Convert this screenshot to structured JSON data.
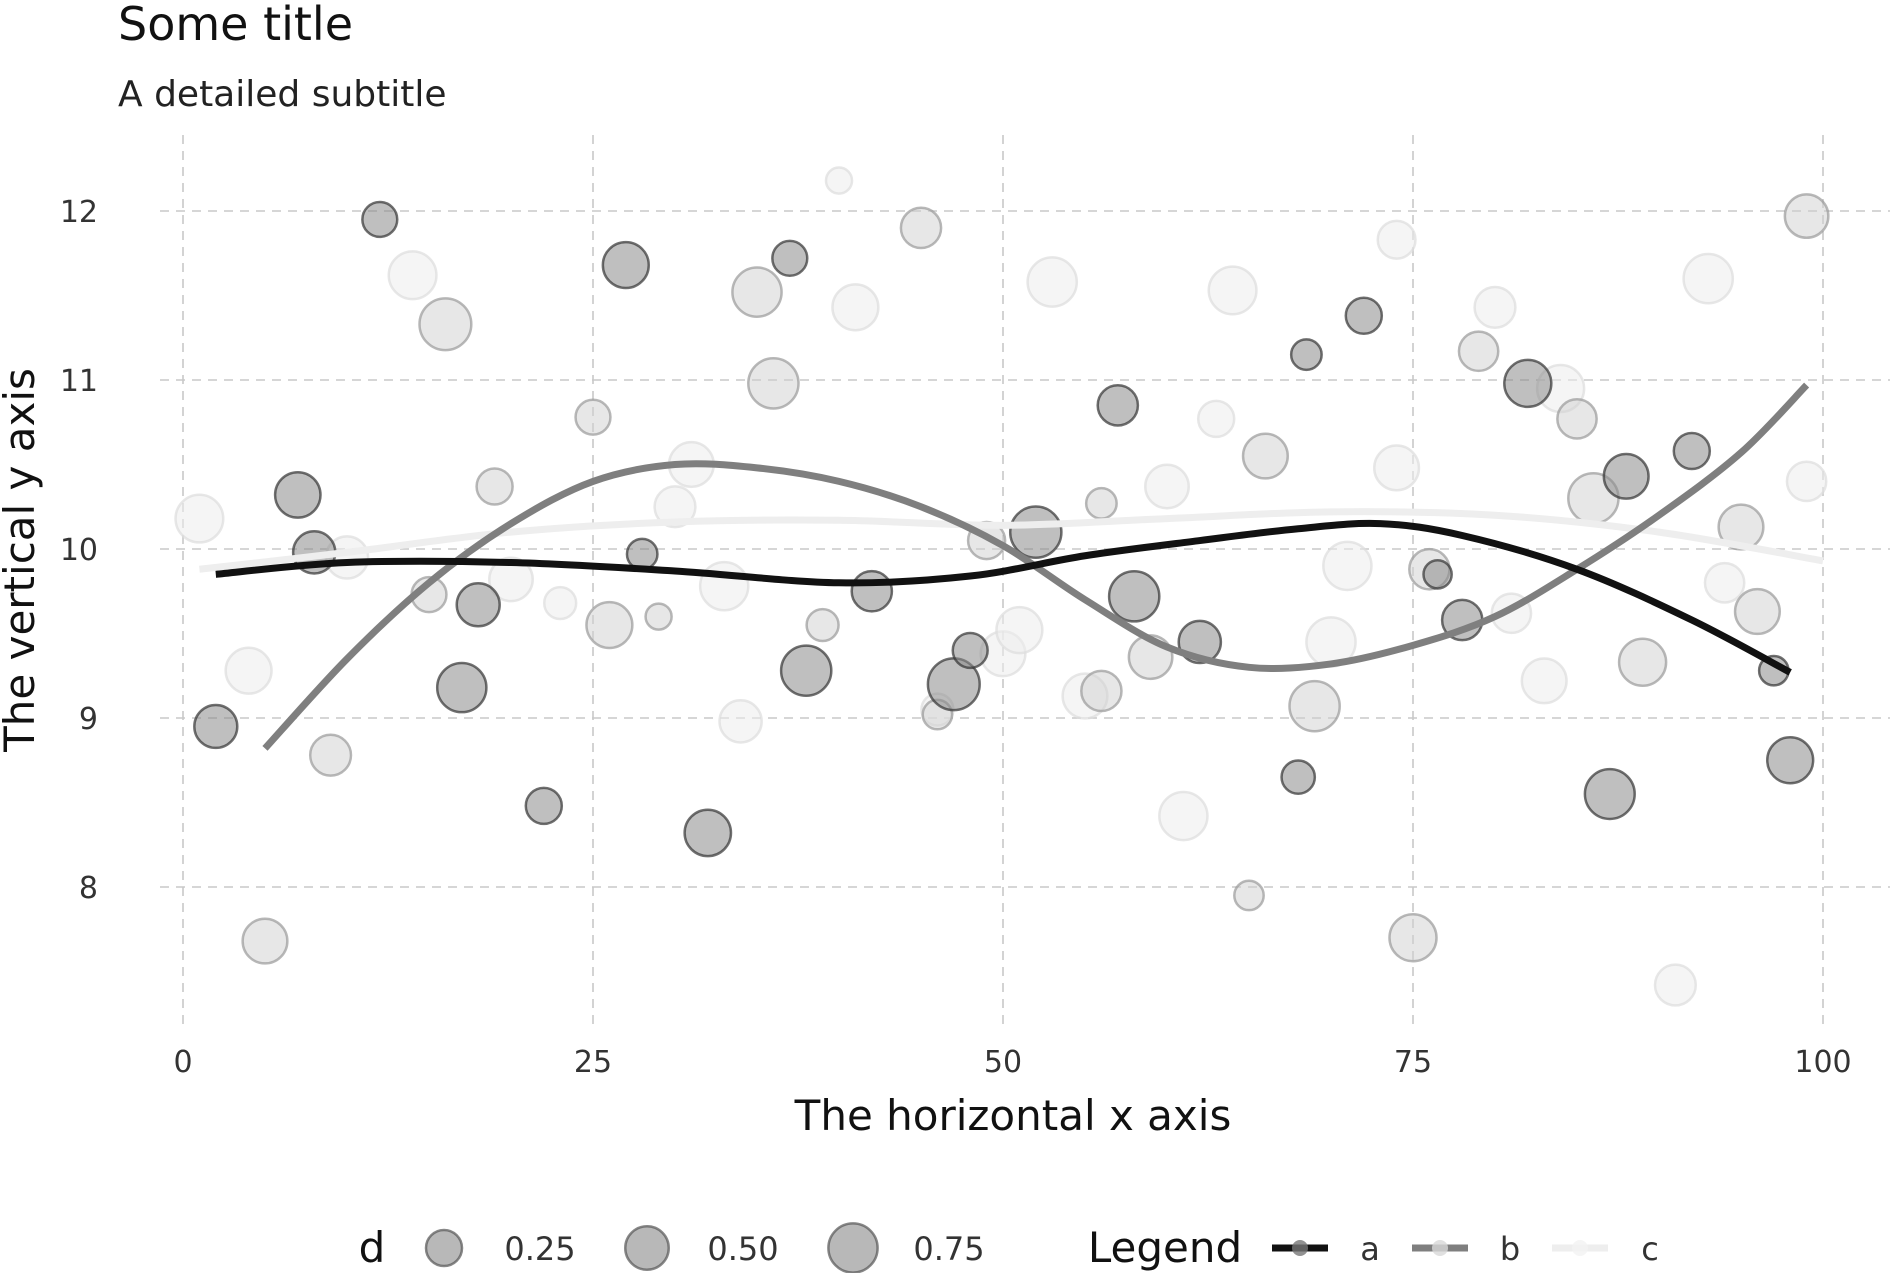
{
  "chart_data": {
    "type": "scatter",
    "title": "Some title",
    "subtitle": "A detailed subtitle",
    "xlabel": "The horizontal x axis",
    "ylabel": "The vertical y axis",
    "xlim": [
      -1,
      102
    ],
    "ylim": [
      7.2,
      12.5
    ],
    "xticks": [
      0,
      25,
      50,
      75,
      100
    ],
    "yticks": [
      8,
      9,
      10,
      11,
      12
    ],
    "grid": true,
    "legend_position": "bottom",
    "size_legend": {
      "title": "d",
      "values": [
        0.25,
        0.5,
        0.75
      ],
      "labels": [
        "0.25",
        "0.50",
        "0.75"
      ]
    },
    "color_legend": {
      "title": "Legend",
      "labels": [
        "a",
        "b",
        "c"
      ]
    },
    "colors": {
      "a": "#111111",
      "b": "#7f7f7f",
      "c": "#eeeeee"
    },
    "points": {
      "a": [
        [
          2,
          8.95,
          0.48
        ],
        [
          7,
          10.32,
          0.58
        ],
        [
          8,
          9.98,
          0.45
        ],
        [
          12,
          11.95,
          0.22
        ],
        [
          17,
          9.18,
          0.75
        ],
        [
          18,
          9.67,
          0.48
        ],
        [
          22,
          8.48,
          0.25
        ],
        [
          27,
          11.68,
          0.6
        ],
        [
          28,
          9.97,
          0.12
        ],
        [
          32,
          8.32,
          0.62
        ],
        [
          37,
          11.72,
          0.22
        ],
        [
          38,
          9.28,
          0.8
        ],
        [
          42,
          9.75,
          0.38
        ],
        [
          47,
          9.2,
          0.88
        ],
        [
          48,
          9.4,
          0.22
        ],
        [
          52,
          10.1,
          0.85
        ],
        [
          57,
          10.85,
          0.38
        ],
        [
          58,
          9.72,
          0.8
        ],
        [
          62,
          9.45,
          0.45
        ],
        [
          68,
          8.65,
          0.18
        ],
        [
          68.5,
          11.15,
          0.12
        ],
        [
          72,
          11.38,
          0.25
        ],
        [
          76.5,
          9.85,
          0.08
        ],
        [
          78,
          9.58,
          0.38
        ],
        [
          82,
          10.98,
          0.65
        ],
        [
          87,
          8.55,
          0.78
        ],
        [
          88,
          10.43,
          0.55
        ],
        [
          92,
          10.58,
          0.25
        ],
        [
          97,
          9.28,
          0.1
        ],
        [
          98,
          8.75,
          0.6
        ]
      ],
      "b": [
        [
          5,
          7.68,
          0.55
        ],
        [
          9,
          8.78,
          0.4
        ],
        [
          15,
          9.73,
          0.22
        ],
        [
          16,
          11.33,
          0.88
        ],
        [
          19,
          10.37,
          0.25
        ],
        [
          25,
          10.78,
          0.22
        ],
        [
          26,
          9.55,
          0.6
        ],
        [
          29,
          9.6,
          0.05
        ],
        [
          35,
          11.52,
          0.75
        ],
        [
          36,
          10.98,
          0.8
        ],
        [
          39,
          9.55,
          0.15
        ],
        [
          45,
          11.9,
          0.38
        ],
        [
          46,
          9.02,
          0.1
        ],
        [
          49,
          10.05,
          0.28
        ],
        [
          56,
          9.16,
          0.38
        ],
        [
          56,
          10.27,
          0.12
        ],
        [
          59,
          9.36,
          0.5
        ],
        [
          65,
          7.95,
          0.1
        ],
        [
          66,
          10.55,
          0.55
        ],
        [
          69,
          9.07,
          0.8
        ],
        [
          75,
          7.7,
          0.65
        ],
        [
          76,
          9.88,
          0.38
        ],
        [
          79,
          11.17,
          0.35
        ],
        [
          85,
          10.77,
          0.35
        ],
        [
          86,
          10.3,
          0.8
        ],
        [
          89,
          9.33,
          0.65
        ],
        [
          95,
          10.13,
          0.55
        ],
        [
          96,
          9.63,
          0.55
        ],
        [
          99,
          11.97,
          0.5
        ]
      ],
      "c": [
        [
          1,
          10.18,
          0.68
        ],
        [
          4,
          9.28,
          0.6
        ],
        [
          10,
          9.95,
          0.45
        ],
        [
          14,
          11.62,
          0.68
        ],
        [
          20,
          9.82,
          0.5
        ],
        [
          23,
          9.68,
          0.15
        ],
        [
          30,
          10.25,
          0.4
        ],
        [
          31,
          10.5,
          0.55
        ],
        [
          33,
          9.78,
          0.7
        ],
        [
          34,
          8.98,
          0.45
        ],
        [
          40,
          12.18,
          0.05
        ],
        [
          41,
          11.43,
          0.6
        ],
        [
          46,
          9.05,
          0.15
        ],
        [
          50,
          9.38,
          0.55
        ],
        [
          51,
          9.52,
          0.6
        ],
        [
          53,
          11.58,
          0.75
        ],
        [
          55,
          9.13,
          0.55
        ],
        [
          60,
          10.37,
          0.5
        ],
        [
          61,
          8.42,
          0.7
        ],
        [
          63,
          10.77,
          0.25
        ],
        [
          64,
          11.53,
          0.68
        ],
        [
          70,
          9.45,
          0.75
        ],
        [
          71,
          9.9,
          0.7
        ],
        [
          74,
          10.48,
          0.55
        ],
        [
          74,
          11.83,
          0.3
        ],
        [
          80,
          11.43,
          0.4
        ],
        [
          81,
          9.62,
          0.35
        ],
        [
          83,
          9.22,
          0.55
        ],
        [
          84,
          10.95,
          0.65
        ],
        [
          91,
          7.42,
          0.4
        ],
        [
          93,
          11.6,
          0.75
        ],
        [
          94,
          9.8,
          0.35
        ],
        [
          99,
          10.4,
          0.35
        ]
      ]
    },
    "lines": {
      "a": {
        "x": [
          2,
          10,
          20,
          30,
          40,
          48,
          55,
          62,
          68,
          73,
          78,
          85,
          92,
          98
        ],
        "y": [
          9.85,
          9.92,
          9.92,
          9.87,
          9.8,
          9.84,
          9.96,
          10.05,
          10.12,
          10.15,
          10.08,
          9.88,
          9.58,
          9.27
        ]
      },
      "b": {
        "x": [
          5,
          10,
          15,
          20,
          25,
          30,
          35,
          40,
          45,
          50,
          55,
          60,
          65,
          70,
          75,
          80,
          85,
          90,
          95,
          99
        ],
        "y": [
          8.82,
          9.35,
          9.8,
          10.15,
          10.4,
          10.5,
          10.48,
          10.4,
          10.25,
          10.02,
          9.7,
          9.42,
          9.3,
          9.32,
          9.43,
          9.6,
          9.88,
          10.2,
          10.57,
          10.97
        ]
      },
      "c": {
        "x": [
          1,
          10,
          20,
          30,
          40,
          50,
          60,
          70,
          80,
          90,
          100
        ],
        "y": [
          9.88,
          9.98,
          10.1,
          10.16,
          10.17,
          10.14,
          10.18,
          10.22,
          10.2,
          10.1,
          9.93
        ]
      }
    }
  }
}
